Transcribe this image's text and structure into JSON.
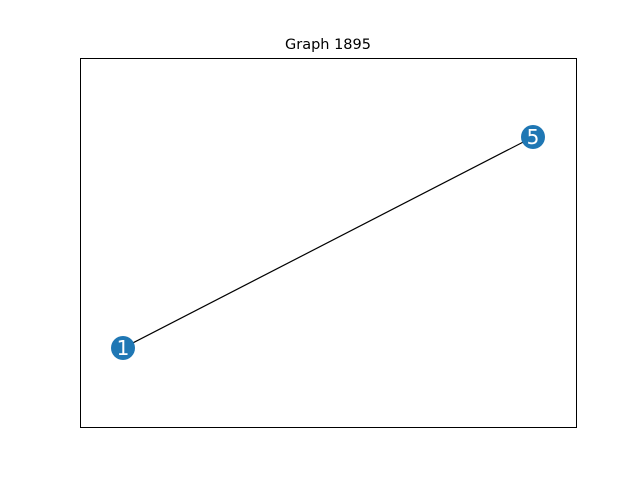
{
  "figure": {
    "title": "Graph 1895"
  },
  "graph": {
    "nodes": [
      {
        "id": "1",
        "label": "1"
      },
      {
        "id": "5",
        "label": "5"
      }
    ],
    "edges": [
      {
        "source": "1",
        "target": "5"
      }
    ]
  },
  "colors": {
    "node_fill": "#1f77b4",
    "node_label": "#ffffff",
    "edge": "#000000",
    "frame": "#000000",
    "background": "#ffffff"
  }
}
